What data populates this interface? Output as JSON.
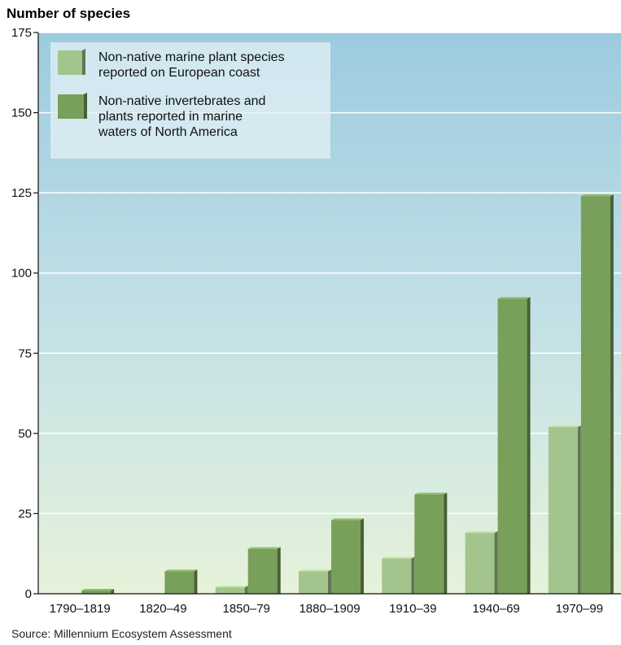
{
  "chart_data": {
    "type": "bar",
    "ylabel": "Number of species",
    "ylim": [
      0,
      175
    ],
    "yticks": [
      0,
      25,
      50,
      75,
      100,
      125,
      150,
      175
    ],
    "grid": true,
    "legend_position": "top-left",
    "categories": [
      "1790–1819",
      "1820–49",
      "1850–79",
      "1880–1909",
      "1910–39",
      "1940–69",
      "1970–99"
    ],
    "series": [
      {
        "name": "Non-native marine plant species reported on European coast",
        "legend_lines": [
          "Non-native marine plant species",
          "reported on European coast"
        ],
        "color": "#a3c48c",
        "values": [
          null,
          null,
          2,
          7,
          11,
          19,
          52
        ]
      },
      {
        "name": "Non-native invertebrates and plants reported in marine waters of North America",
        "legend_lines": [
          "Non-native invertebrates and",
          "plants reported in marine",
          "waters of North America"
        ],
        "color": "#78a05a",
        "values": [
          1,
          7,
          14,
          23,
          31,
          92,
          124
        ]
      }
    ],
    "source": "Source: Millennium Ecosystem Assessment"
  }
}
